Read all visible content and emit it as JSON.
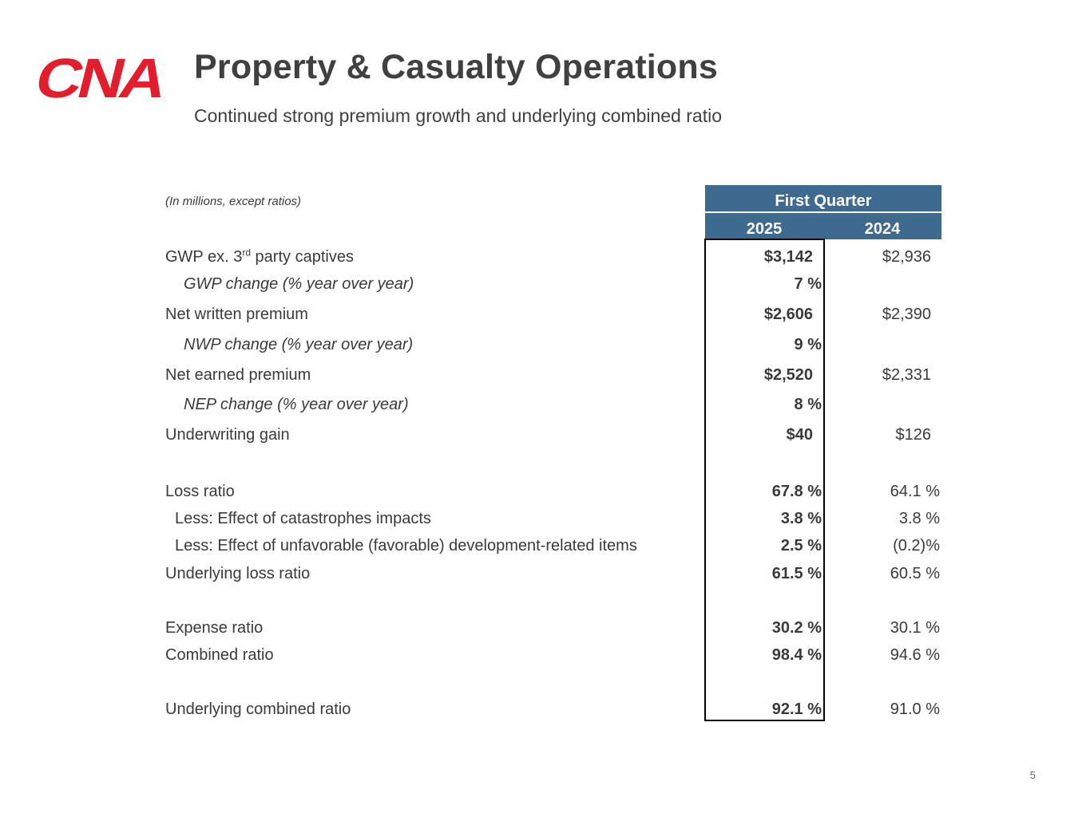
{
  "brand": {
    "logo_text": "CNA",
    "logo_color": "#e31d2b",
    "header_color": "#3d6a8e"
  },
  "slide": {
    "title": "Property & Casualty Operations",
    "subtitle": "Continued strong premium growth and underlying combined ratio",
    "page_number": "5"
  },
  "table": {
    "units_note": "(In millions, except ratios)",
    "period_header": "First Quarter",
    "years": [
      "2025",
      "2024"
    ],
    "rows": [
      {
        "label": "GWP ex. 3",
        "label_sup": "rd",
        "label_suffix": " party captives",
        "v2025": "$3,142",
        "v2024": "$2,936"
      },
      {
        "label": "GWP change (% year over year)",
        "v2025": "7 %",
        "v2024": ""
      },
      {
        "label": "Net written premium",
        "v2025": "$2,606",
        "v2024": "$2,390"
      },
      {
        "label": "NWP change (% year over year)",
        "v2025": "9 %",
        "v2024": ""
      },
      {
        "label": "Net earned premium",
        "v2025": "$2,520",
        "v2024": "$2,331"
      },
      {
        "label": "NEP change (% year over year)",
        "v2025": "8 %",
        "v2024": ""
      },
      {
        "label": "Underwriting gain",
        "v2025": "$40",
        "v2024": "$126"
      },
      {
        "label": "Loss ratio",
        "v2025": "67.8 %",
        "v2024": "64.1 %"
      },
      {
        "label": "Less: Effect of catastrophes impacts",
        "v2025": "3.8 %",
        "v2024": "3.8 %"
      },
      {
        "label": "Less: Effect of unfavorable (favorable) development-related items",
        "v2025": "2.5 %",
        "v2024": "(0.2)%"
      },
      {
        "label": "Underlying loss ratio",
        "v2025": "61.5 %",
        "v2024": "60.5 %"
      },
      {
        "label": "Expense ratio",
        "v2025": "30.2 %",
        "v2024": "30.1 %"
      },
      {
        "label": "Combined ratio",
        "v2025": "98.4 %",
        "v2024": "94.6 %"
      },
      {
        "label": "Underlying combined ratio",
        "v2025": "92.1 %",
        "v2024": "91.0 %"
      }
    ]
  }
}
